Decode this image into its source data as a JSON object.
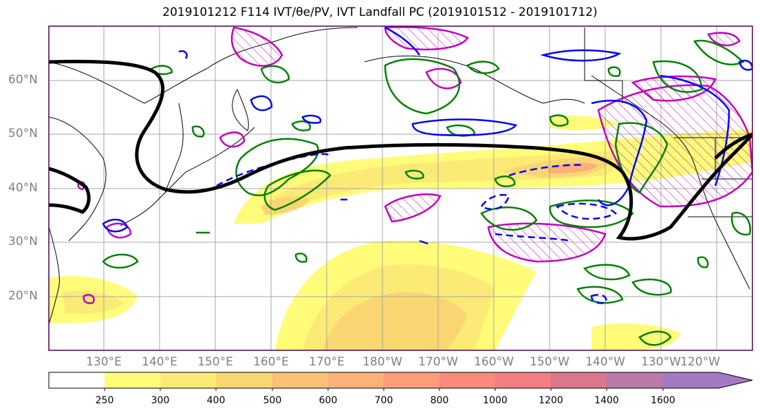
{
  "title": "2019101212 F114 IVT/θe/PV, IVT Landfall PC (2019101512 - 2019101712)",
  "lat_labels": [
    "60°N",
    "50°N",
    "40°N",
    "30°N",
    "20°N"
  ],
  "lon_labels": [
    "130°E",
    "140°E",
    "150°E",
    "160°E",
    "170°E",
    "180°W",
    "170°W",
    "160°W",
    "150°W",
    "140°W",
    "130°W",
    "120°W"
  ],
  "colorbar": {
    "ticks": [
      "250",
      "300",
      "400",
      "500",
      "600",
      "700",
      "800",
      "1000",
      "1200",
      "1400",
      "1600"
    ],
    "colors": [
      "#ffffff",
      "#fffc7a",
      "#fbea75",
      "#fad672",
      "#fbc176",
      "#fbb179",
      "#fb9d7a",
      "#f98b7b",
      "#f07e82",
      "#d9788d",
      "#b87aa8",
      "#a37ac2"
    ]
  },
  "contour_colors": {
    "ivt_shading_light": "#fffc7a",
    "ivt_shading_mid": "#fad672",
    "ivt_shading_core": "#fbb179",
    "pc_line": "#000000",
    "theta_e": "#0000ff",
    "pv_green": "#008000",
    "pv_magenta": "#c000c0"
  }
}
